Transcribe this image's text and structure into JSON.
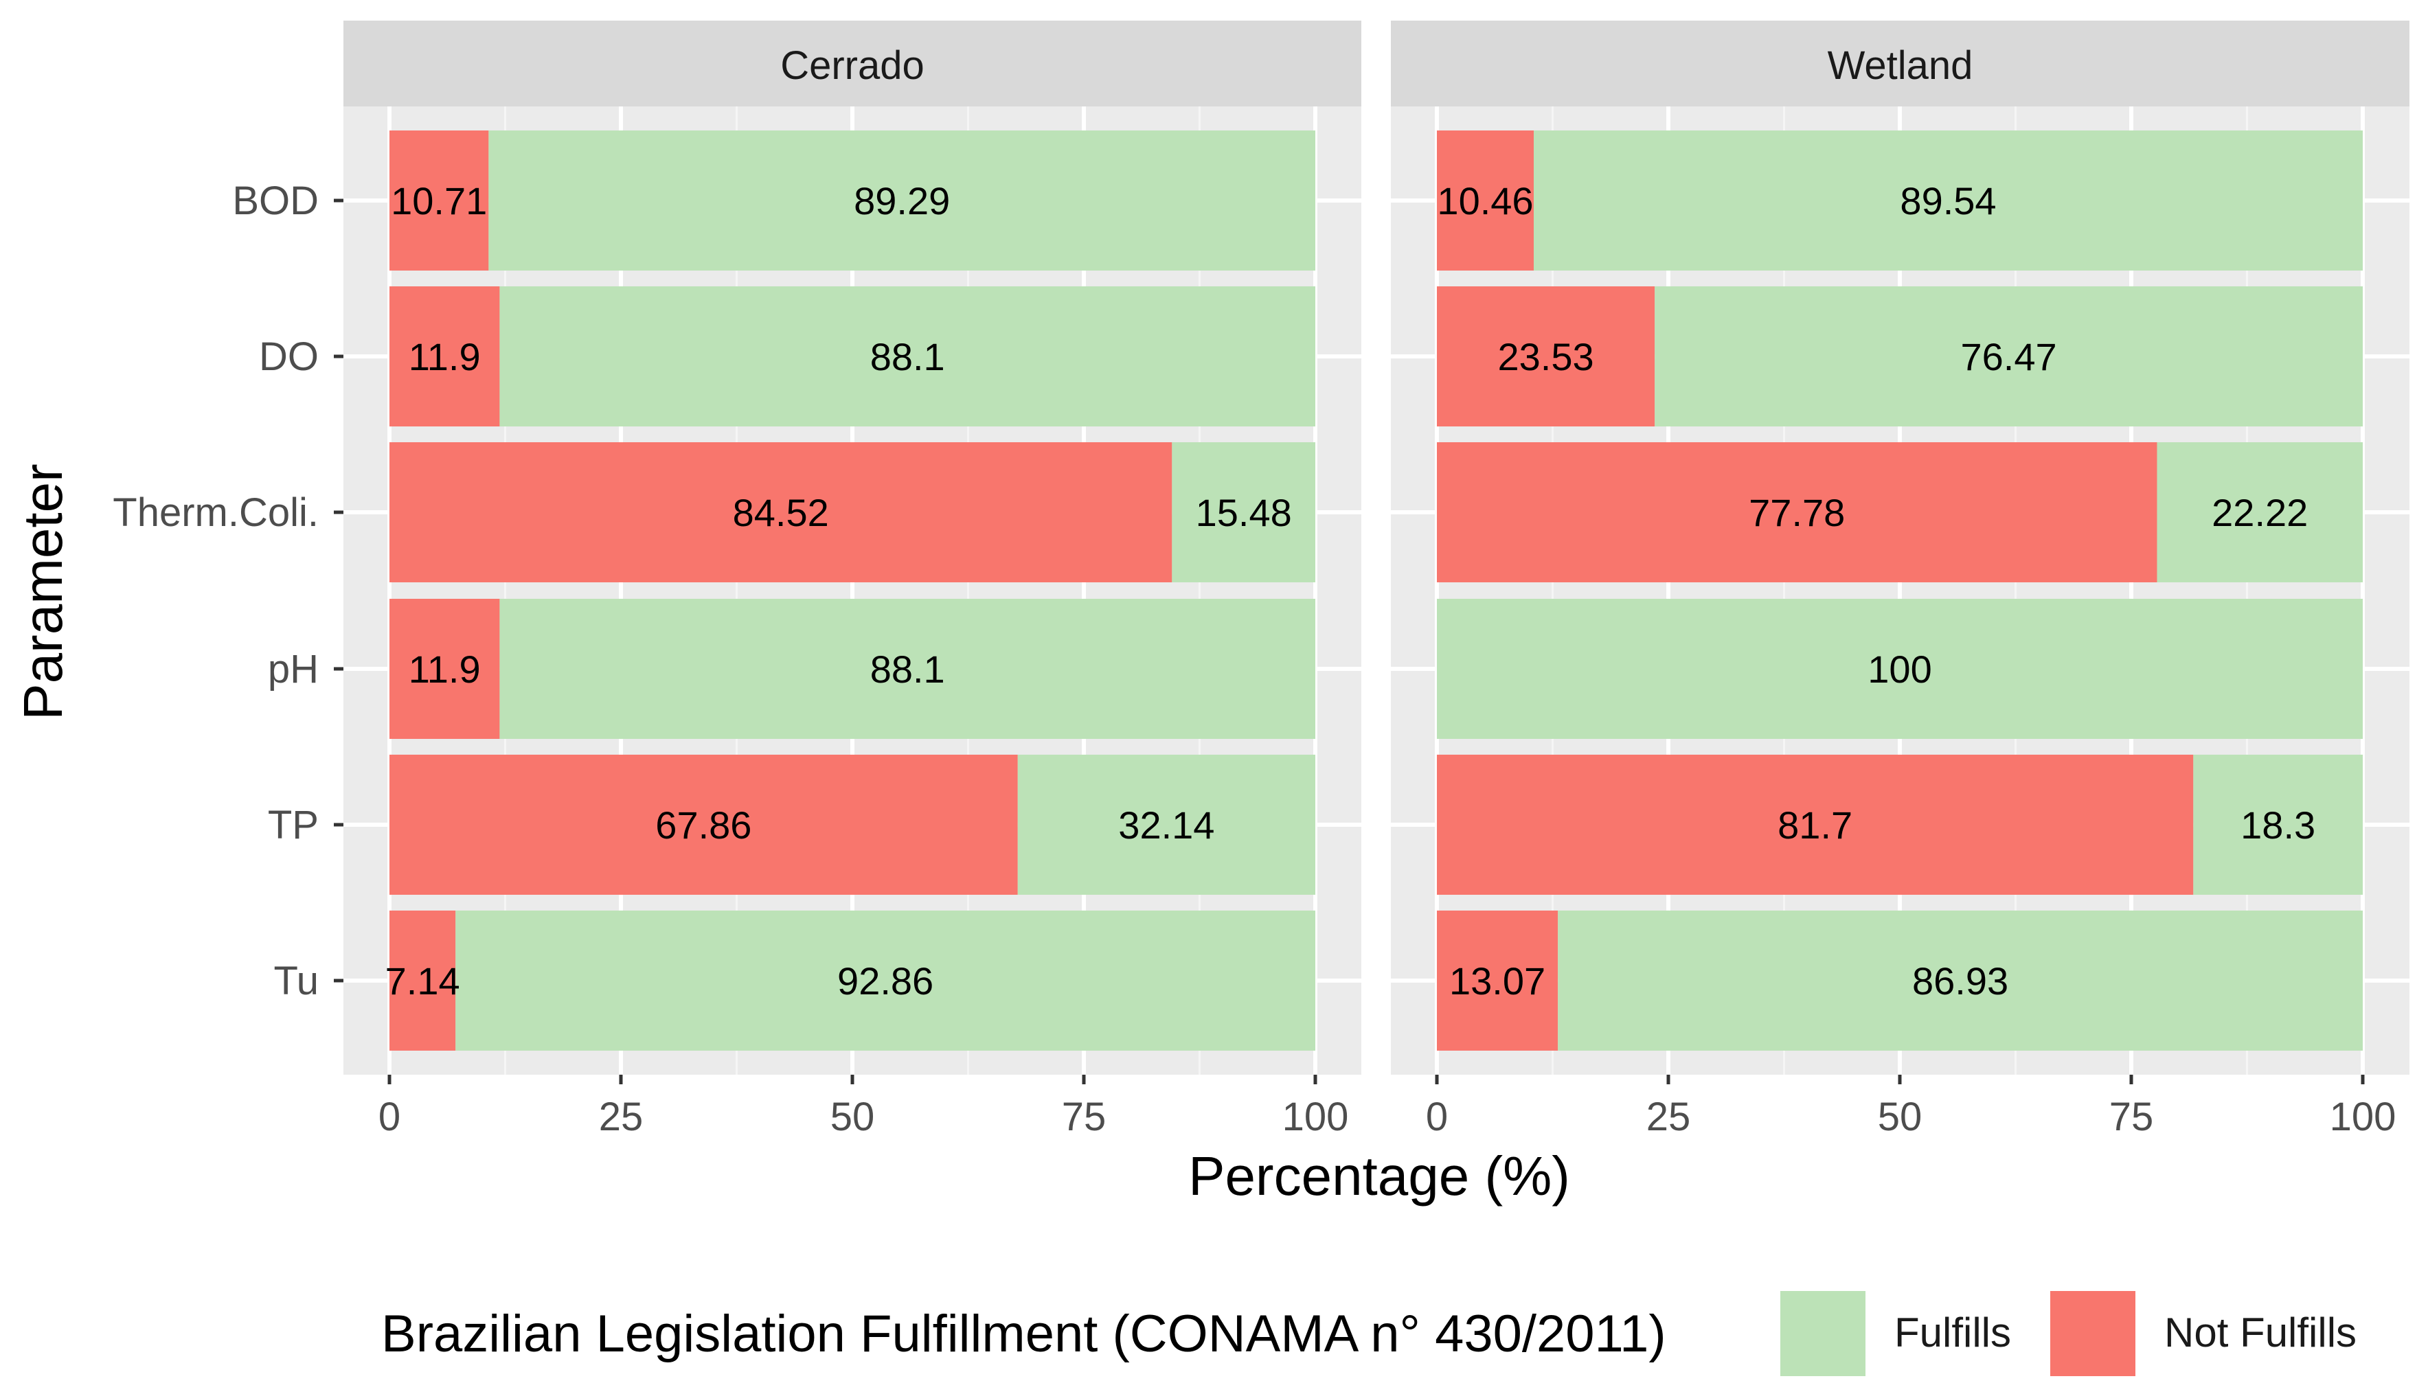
{
  "chart_data": {
    "type": "bar",
    "orientation": "horizontal",
    "stacked": true,
    "xlabel": "Percentage (%)",
    "ylabel": "Parameter",
    "xlim": [
      0,
      100
    ],
    "xticks": [
      "0",
      "25",
      "50",
      "75",
      "100"
    ],
    "categories": [
      "BOD",
      "DO",
      "Therm.Coli.",
      "pH",
      "TP",
      "Tu"
    ],
    "legend": {
      "title": "Brazilian Legislation Fulfillment (CONAMA n° 430/2011)",
      "position": "bottom",
      "entries": [
        {
          "label": "Fulfills",
          "color": "#bce2b7"
        },
        {
          "label": "Not Fulfills",
          "color": "#f8766d"
        }
      ]
    },
    "panels": [
      {
        "title": "Cerrado",
        "series": [
          {
            "name": "Not Fulfills",
            "values": [
              10.71,
              11.9,
              84.52,
              11.9,
              67.86,
              7.14
            ],
            "labels": [
              "10.71",
              "11.9",
              "84.52",
              "11.9",
              "67.86",
              "7.14"
            ]
          },
          {
            "name": "Fulfills",
            "values": [
              89.29,
              88.1,
              15.48,
              88.1,
              32.14,
              92.86
            ],
            "labels": [
              "89.29",
              "88.1",
              "15.48",
              "88.1",
              "32.14",
              "92.86"
            ]
          }
        ]
      },
      {
        "title": "Wetland",
        "series": [
          {
            "name": "Not Fulfills",
            "values": [
              10.46,
              23.53,
              77.78,
              0,
              81.7,
              13.07
            ],
            "labels": [
              "10.46",
              "23.53",
              "77.78",
              "",
              "81.7",
              "13.07"
            ]
          },
          {
            "name": "Fulfills",
            "values": [
              89.54,
              76.47,
              22.22,
              100,
              18.3,
              86.93
            ],
            "labels": [
              "89.54",
              "76.47",
              "22.22",
              "100",
              "18.3",
              "86.93"
            ]
          }
        ]
      }
    ]
  }
}
